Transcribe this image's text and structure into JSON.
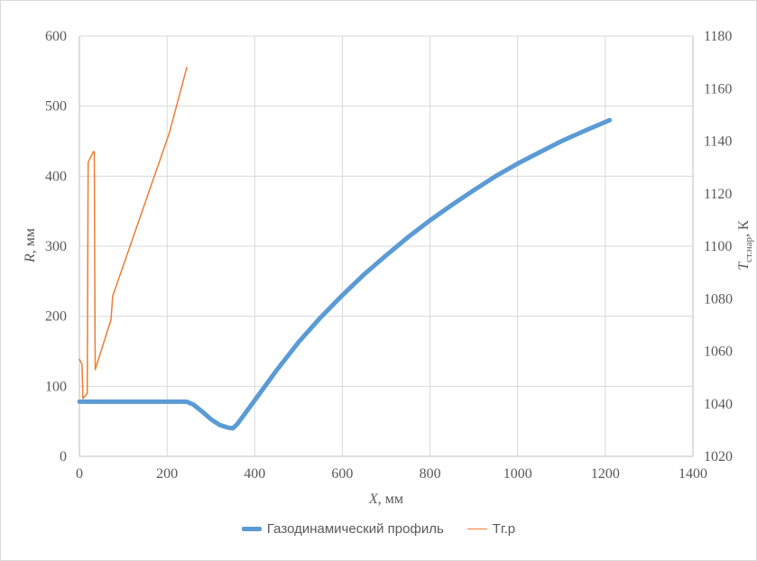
{
  "chart_data": {
    "type": "line",
    "title": "",
    "xlabel": {
      "main": "X",
      "unit": ", мм"
    },
    "ylabel": {
      "main": "R",
      "unit": ", мм"
    },
    "y2label": {
      "main": "T",
      "sub": "ст.нар",
      "unit": ", К"
    },
    "xlim": [
      0,
      1400
    ],
    "ylim": [
      0,
      600
    ],
    "y2lim": [
      1020,
      1180
    ],
    "xticks": [
      "0",
      "200",
      "400",
      "600",
      "800",
      "1000",
      "1200",
      "1400"
    ],
    "yticks": [
      "0",
      "100",
      "200",
      "300",
      "400",
      "500",
      "600"
    ],
    "y2ticks": [
      "1020",
      "1040",
      "1060",
      "1080",
      "1100",
      "1120",
      "1140",
      "1160",
      "1180"
    ],
    "grid": true,
    "legend_position": "bottom",
    "series": [
      {
        "name": "Газодинамический профиль",
        "axis": "left",
        "color": "#5B9BD5",
        "x": [
          0,
          50,
          100,
          150,
          200,
          245,
          260,
          280,
          300,
          320,
          340,
          350,
          360,
          400,
          450,
          500,
          550,
          600,
          650,
          700,
          750,
          800,
          850,
          900,
          950,
          1000,
          1050,
          1100,
          1150,
          1210
        ],
        "y": [
          78,
          78,
          78,
          78,
          78,
          78,
          74,
          64,
          53,
          45,
          41,
          40,
          46,
          80,
          123,
          163,
          198,
          230,
          260,
          287,
          313,
          337,
          359,
          380,
          400,
          418,
          434,
          450,
          464,
          480
        ]
      },
      {
        "name": "Тг.р",
        "axis": "right",
        "color": "#ED7D31",
        "x": [
          0,
          6,
          8,
          18,
          20,
          32,
          34,
          36,
          72,
          76,
          205,
          245
        ],
        "y": [
          1057,
          1055,
          1042,
          1044,
          1132,
          1136,
          1136,
          1053,
          1072,
          1081,
          1143,
          1168
        ]
      }
    ]
  }
}
